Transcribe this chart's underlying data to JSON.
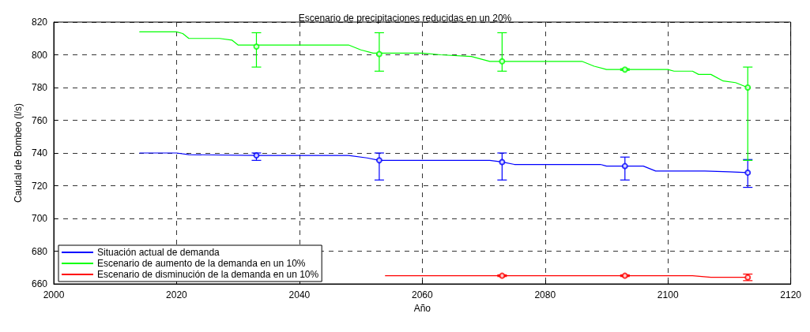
{
  "chart_data": {
    "type": "line",
    "title": "Escenario de precipitaciones reducidas en un 20%",
    "xlabel": "Año",
    "ylabel": "Caudal de Bombeo (l/s)",
    "xlim": [
      2000,
      2120
    ],
    "xticks": [
      2000,
      2020,
      2040,
      2060,
      2080,
      2100,
      2120
    ],
    "ylim": [
      660,
      820
    ],
    "yticks": [
      660,
      680,
      700,
      720,
      740,
      760,
      780,
      800,
      820
    ],
    "grid": true,
    "legend": "bottom left",
    "marker": "none",
    "line_style": "solid",
    "series": [
      {
        "name": "Situación actual de demanda",
        "color": "#0000ff",
        "x": [
          2014,
          2020,
          2022,
          2033,
          2048,
          2051,
          2053,
          2071,
          2073,
          2075,
          2089,
          2090,
          2096,
          2098,
          2106,
          2110,
          2113
        ],
        "values": [
          740,
          740,
          739,
          738.5,
          738.5,
          737,
          735.5,
          735.5,
          734.5,
          733,
          733,
          732,
          732,
          729,
          729,
          728.5,
          728
        ]
      },
      {
        "name": "Escenario de aumento de la demanda en un 10%",
        "color": "#00ff00",
        "x": [
          2014,
          2020,
          2021,
          2022,
          2027,
          2029,
          2030,
          2048,
          2050,
          2052,
          2060,
          2063,
          2068,
          2071,
          2086,
          2088,
          2090,
          2100,
          2101,
          2104,
          2105,
          2107,
          2109,
          2111,
          2113
        ],
        "values": [
          814,
          814,
          813,
          810,
          810,
          809,
          806,
          806,
          803,
          801,
          801,
          800,
          799,
          796,
          796,
          793,
          791,
          791,
          790,
          790,
          788,
          788,
          784,
          783,
          780
        ]
      },
      {
        "name": "Escenario de disminución de la demanda en un 10%",
        "color": "#ff0000",
        "x": [
          2054,
          2100,
          2104,
          2107,
          2113
        ],
        "values": [
          665,
          665,
          665,
          664,
          664
        ]
      },
      {
        "type": "scatter",
        "marker": "circle",
        "color": "#0000ff",
        "x": [
          2033,
          2053,
          2073,
          2093,
          2113
        ],
        "values": [
          738.5,
          735.5,
          734.5,
          732,
          728
        ],
        "errors": [
          [
            735.5,
            740
          ],
          [
            723.5,
            740
          ],
          [
            723.5,
            740
          ],
          [
            723.5,
            737.5
          ],
          [
            719,
            736
          ]
        ]
      },
      {
        "type": "scatter",
        "marker": "circle",
        "color": "#00ff00",
        "x": [
          2033,
          2053,
          2073,
          2093,
          2113
        ],
        "values": [
          805,
          800.5,
          796,
          791,
          780
        ],
        "errors": [
          [
            792.5,
            813.5
          ],
          [
            790,
            813.5
          ],
          [
            790,
            813.5
          ],
          [
            790.5,
            791.5
          ],
          [
            735.5,
            792.5
          ]
        ]
      },
      {
        "type": "scatter",
        "marker": "circle",
        "color": "#ff0000",
        "x": [
          2073,
          2093,
          2113
        ],
        "values": [
          665,
          665,
          664
        ],
        "errors": [
          [
            664.5,
            665.5
          ],
          [
            664.5,
            665.5
          ],
          [
            662,
            666
          ]
        ]
      }
    ]
  }
}
